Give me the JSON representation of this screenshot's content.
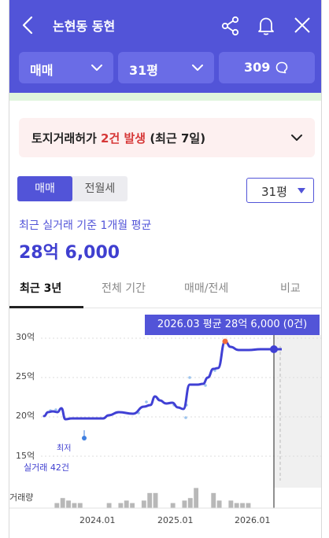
{
  "header": {
    "title": "논현동 동현",
    "selectors": [
      {
        "label": "매매"
      },
      {
        "label": "31평"
      },
      {
        "label": "309"
      }
    ]
  },
  "alert": {
    "prefix": "토지거래허가 ",
    "highlight": "2건 발생",
    "suffix": " (최근 7일)"
  },
  "toggle": {
    "options": [
      "매매",
      "전월세"
    ],
    "active": 0
  },
  "size_dropdown": {
    "label": "31평"
  },
  "summary": {
    "label": "최근 실거래 기준 1개월 평균",
    "value": "28억 6,000"
  },
  "tabs": [
    {
      "label": "최근 3년",
      "active": true
    },
    {
      "label": "전체 기간",
      "active": false
    },
    {
      "label": "매매/전세",
      "active": false
    },
    {
      "label": "비교",
      "active": false
    }
  ],
  "chart_data": {
    "type": "line",
    "tooltip": "2026.03 평균 28억 6,000 (0건)",
    "lowest_label": "최저",
    "count_label": "실거래 42건",
    "volume_label": "거래량",
    "y_unit": "억",
    "ylim": [
      15,
      30
    ],
    "yticks": [
      "30억",
      "25억",
      "20억",
      "15억"
    ],
    "yticks_values": [
      30,
      25,
      20,
      15
    ],
    "xticks": [
      "2024.01",
      "2025.01",
      "2026.01"
    ],
    "x_range": [
      "2023.04",
      "2026.04"
    ],
    "series": [
      {
        "values": [
          {
            "t": 2023.25,
            "y": 20.1
          },
          {
            "t": 2023.3,
            "y": 20.6
          },
          {
            "t": 2023.36,
            "y": 20.7
          },
          {
            "t": 2023.42,
            "y": 20.6
          },
          {
            "t": 2023.47,
            "y": 21.1
          },
          {
            "t": 2023.52,
            "y": 19.7
          },
          {
            "t": 2023.6,
            "y": 19.8
          },
          {
            "t": 2023.8,
            "y": 19.8
          },
          {
            "t": 2024.0,
            "y": 19.8
          },
          {
            "t": 2024.07,
            "y": 20.2
          },
          {
            "t": 2024.2,
            "y": 20.6
          },
          {
            "t": 2024.38,
            "y": 20.4
          },
          {
            "t": 2024.52,
            "y": 21.3
          },
          {
            "t": 2024.6,
            "y": 21.5
          },
          {
            "t": 2024.66,
            "y": 22.6
          },
          {
            "t": 2024.72,
            "y": 22.1
          },
          {
            "t": 2024.8,
            "y": 21.7
          },
          {
            "t": 2024.88,
            "y": 21.8
          },
          {
            "t": 2024.95,
            "y": 21.2
          },
          {
            "t": 2025.02,
            "y": 21.0
          },
          {
            "t": 2025.1,
            "y": 24.1
          },
          {
            "t": 2025.2,
            "y": 24.1
          },
          {
            "t": 2025.27,
            "y": 24.2
          },
          {
            "t": 2025.33,
            "y": 25.0
          },
          {
            "t": 2025.4,
            "y": 26.1
          },
          {
            "t": 2025.46,
            "y": 26.2
          },
          {
            "t": 2025.55,
            "y": 29.6
          },
          {
            "t": 2025.62,
            "y": 28.9
          },
          {
            "t": 2025.72,
            "y": 28.5
          },
          {
            "t": 2025.85,
            "y": 28.5
          },
          {
            "t": 2026.0,
            "y": 28.6
          },
          {
            "t": 2026.17,
            "y": 28.6
          }
        ]
      }
    ],
    "scatter": [
      {
        "t": 2023.33,
        "y": 20.8
      },
      {
        "t": 2023.4,
        "y": 20.9
      },
      {
        "t": 2024.45,
        "y": 20.5
      },
      {
        "t": 2024.55,
        "y": 21.9
      },
      {
        "t": 2024.7,
        "y": 22.3
      },
      {
        "t": 2024.9,
        "y": 21.5
      },
      {
        "t": 2025.05,
        "y": 19.9
      },
      {
        "t": 2025.06,
        "y": 21.5
      },
      {
        "t": 2025.1,
        "y": 25.0
      },
      {
        "t": 2025.3,
        "y": 24.0
      },
      {
        "t": 2025.42,
        "y": 25.9
      }
    ],
    "volume": [
      0,
      2,
      4,
      3,
      2,
      2,
      0,
      0,
      0,
      0,
      2,
      0,
      2,
      3,
      2,
      0,
      3,
      6,
      6,
      0,
      0,
      2,
      0,
      3,
      4,
      8,
      0,
      0,
      6,
      3,
      0,
      3,
      2,
      2,
      2,
      0,
      0,
      0
    ]
  }
}
